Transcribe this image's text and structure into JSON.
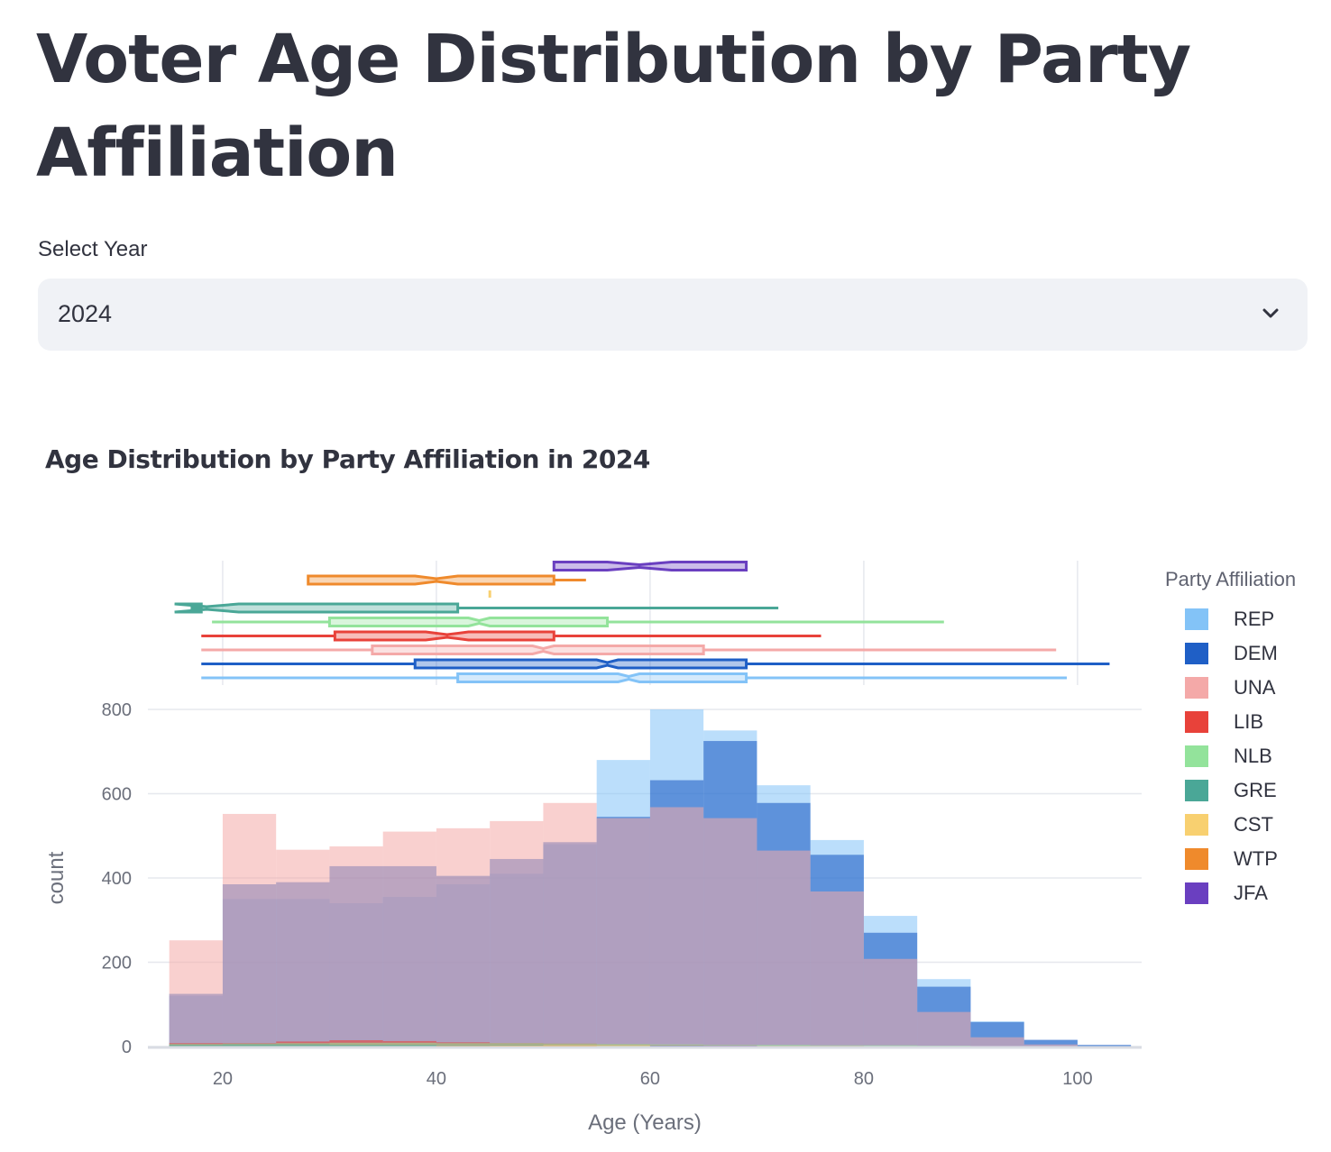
{
  "page": {
    "title": "Voter Age Distribution by Party Affiliation"
  },
  "year_select": {
    "label": "Select Year",
    "value": "2024",
    "icon": "chevron-down-icon"
  },
  "chart_title": "Age Distribution by Party Affiliation in 2024",
  "colors": {
    "REP": "#83c3f7",
    "DEM": "#1f5fc6",
    "UNA": "#f4a9a8",
    "LIB": "#e8423a",
    "NLB": "#93e39b",
    "GRE": "#4aa797",
    "CST": "#f8d070",
    "WTP": "#ef8a2c",
    "JFA": "#6a3fc0"
  },
  "chart_data": {
    "type": "bar",
    "mode": "overlay histogram with marginal box plots",
    "xlabel": "Age (Years)",
    "ylabel": "count",
    "xlim": [
      13,
      106
    ],
    "ylim": [
      0,
      800
    ],
    "xticks": [
      "20",
      "40",
      "60",
      "80",
      "100"
    ],
    "xtick_values": [
      20,
      40,
      60,
      80,
      100
    ],
    "yticks": [
      "0",
      "200",
      "400",
      "600",
      "800"
    ],
    "ytick_values": [
      0,
      200,
      400,
      600,
      800
    ],
    "grid": true,
    "bin_width": 5,
    "bin_starts": [
      15,
      20,
      25,
      30,
      35,
      40,
      45,
      50,
      55,
      60,
      65,
      70,
      75,
      80,
      85,
      90,
      95,
      100
    ],
    "legend_title": "Party Affiliation",
    "legend_position": "right",
    "series": [
      {
        "name": "REP",
        "values": [
          120,
          350,
          350,
          340,
          355,
          385,
          410,
          480,
          680,
          800,
          750,
          620,
          490,
          310,
          160,
          60,
          15,
          3
        ]
      },
      {
        "name": "DEM",
        "values": [
          125,
          385,
          390,
          428,
          428,
          405,
          445,
          485,
          545,
          632,
          725,
          578,
          455,
          270,
          142,
          58,
          16,
          4
        ]
      },
      {
        "name": "UNA",
        "values": [
          252,
          552,
          467,
          475,
          510,
          518,
          535,
          578,
          542,
          568,
          542,
          465,
          368,
          208,
          82,
          22,
          5,
          1
        ]
      },
      {
        "name": "LIB",
        "values": [
          8,
          8,
          12,
          15,
          13,
          10,
          8,
          7,
          5,
          4,
          3,
          2,
          2,
          1,
          0,
          0,
          0,
          0
        ]
      },
      {
        "name": "NLB",
        "values": [
          6,
          7,
          8,
          9,
          9,
          8,
          8,
          7,
          6,
          5,
          4,
          4,
          3,
          3,
          2,
          1,
          0,
          0
        ]
      },
      {
        "name": "GRE",
        "values": [
          4,
          5,
          5,
          4,
          4,
          3,
          3,
          2,
          2,
          2,
          1,
          1,
          1,
          0,
          0,
          0,
          0,
          0
        ]
      },
      {
        "name": "CST",
        "values": [
          0,
          0,
          0,
          0,
          0,
          0,
          2,
          3,
          3,
          1,
          0,
          0,
          0,
          0,
          0,
          0,
          0,
          0
        ]
      },
      {
        "name": "WTP",
        "values": [
          0,
          0,
          0,
          1,
          1,
          2,
          2,
          2,
          1,
          0,
          0,
          0,
          0,
          0,
          0,
          0,
          0,
          0
        ]
      },
      {
        "name": "JFA",
        "values": [
          0,
          0,
          0,
          0,
          0,
          0,
          0,
          0,
          1,
          2,
          2,
          1,
          0,
          0,
          0,
          0,
          0,
          0
        ]
      }
    ],
    "box_plots": [
      {
        "name": "REP",
        "min": 18,
        "q1": 42,
        "median": 58,
        "q3": 69,
        "max": 99,
        "notch": 1
      },
      {
        "name": "DEM",
        "min": 18,
        "q1": 38,
        "median": 56,
        "q3": 69,
        "max": 103,
        "notch": 1
      },
      {
        "name": "UNA",
        "min": 18,
        "q1": 34,
        "median": 50,
        "q3": 65,
        "max": 98,
        "notch": 1
      },
      {
        "name": "LIB",
        "min": 18,
        "q1": 30.5,
        "median": 41,
        "q3": 51,
        "max": 76,
        "notch": 2
      },
      {
        "name": "NLB",
        "min": 19,
        "q1": 30,
        "median": 44,
        "q3": 56,
        "max": 87.5,
        "notch": 1
      },
      {
        "name": "GRE",
        "min": 17,
        "q1": 18,
        "median": 18.5,
        "q3": 42,
        "max": 72,
        "notch": 3
      },
      {
        "name": "CST",
        "min": 45,
        "q1": 45,
        "median": 45,
        "q3": 45,
        "max": 45,
        "notch": 0
      },
      {
        "name": "WTP",
        "min": 28,
        "q1": 28,
        "median": 40,
        "q3": 51,
        "max": 54,
        "notch": 2
      },
      {
        "name": "JFA",
        "min": 51,
        "q1": 51,
        "median": 59,
        "q3": 69,
        "max": 69,
        "notch": 3
      }
    ]
  }
}
